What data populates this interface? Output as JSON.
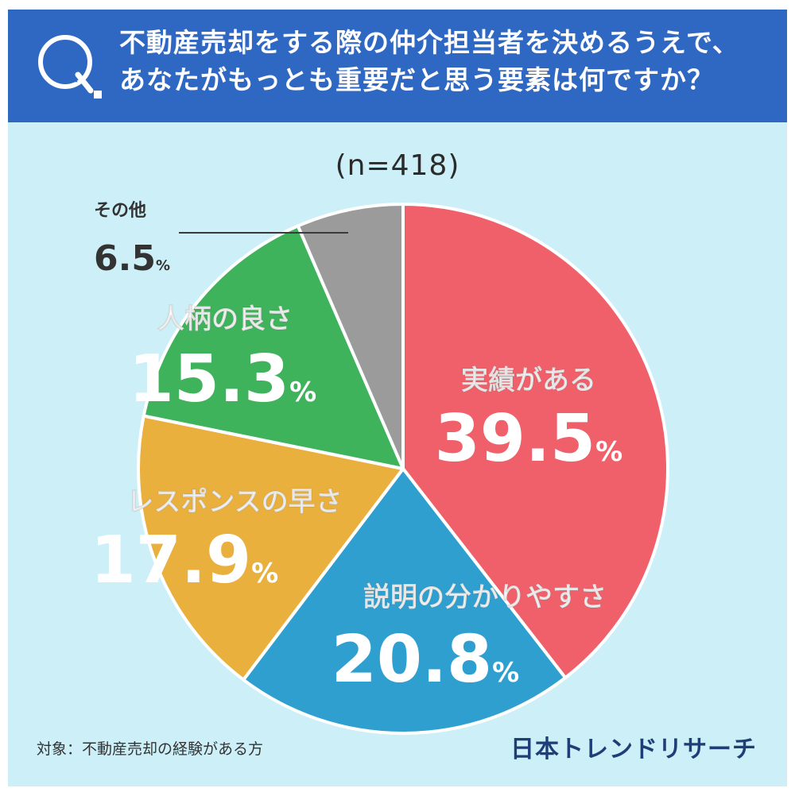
{
  "header": {
    "q_letter": "Q",
    "question_line1": "不動産売却をする際の仲介担当者を決めるうえで、",
    "question_line2": "あなたがもっとも重要だと思う要素は何ですか？"
  },
  "footnote": "対象：不動産売却の経験がある方",
  "brand": "日本トレンドリサーチ",
  "colors": {
    "header_bg": "#2f68c2",
    "panel_bg": "#cdeff7"
  },
  "chart_data": {
    "type": "pie",
    "sample_label": "(n=418)",
    "start": "12 o'clock, clockwise",
    "slices": [
      {
        "label": "実績がある",
        "value": 39.5,
        "value_text": "39.5",
        "unit": "%",
        "color": "#f0606a"
      },
      {
        "label": "説明の分かりやすさ",
        "value": 20.8,
        "value_text": "20.8",
        "unit": "%",
        "color": "#2f9fd0"
      },
      {
        "label": "レスポンスの早さ",
        "value": 17.9,
        "value_text": "17.9",
        "unit": "%",
        "color": "#e9b03e"
      },
      {
        "label": "人柄の良さ",
        "value": 15.3,
        "value_text": "15.3",
        "unit": "%",
        "color": "#3fb35c"
      },
      {
        "label": "その他",
        "value": 6.5,
        "value_text": "6.5",
        "unit": "%",
        "color": "#9b9b9b"
      }
    ]
  }
}
